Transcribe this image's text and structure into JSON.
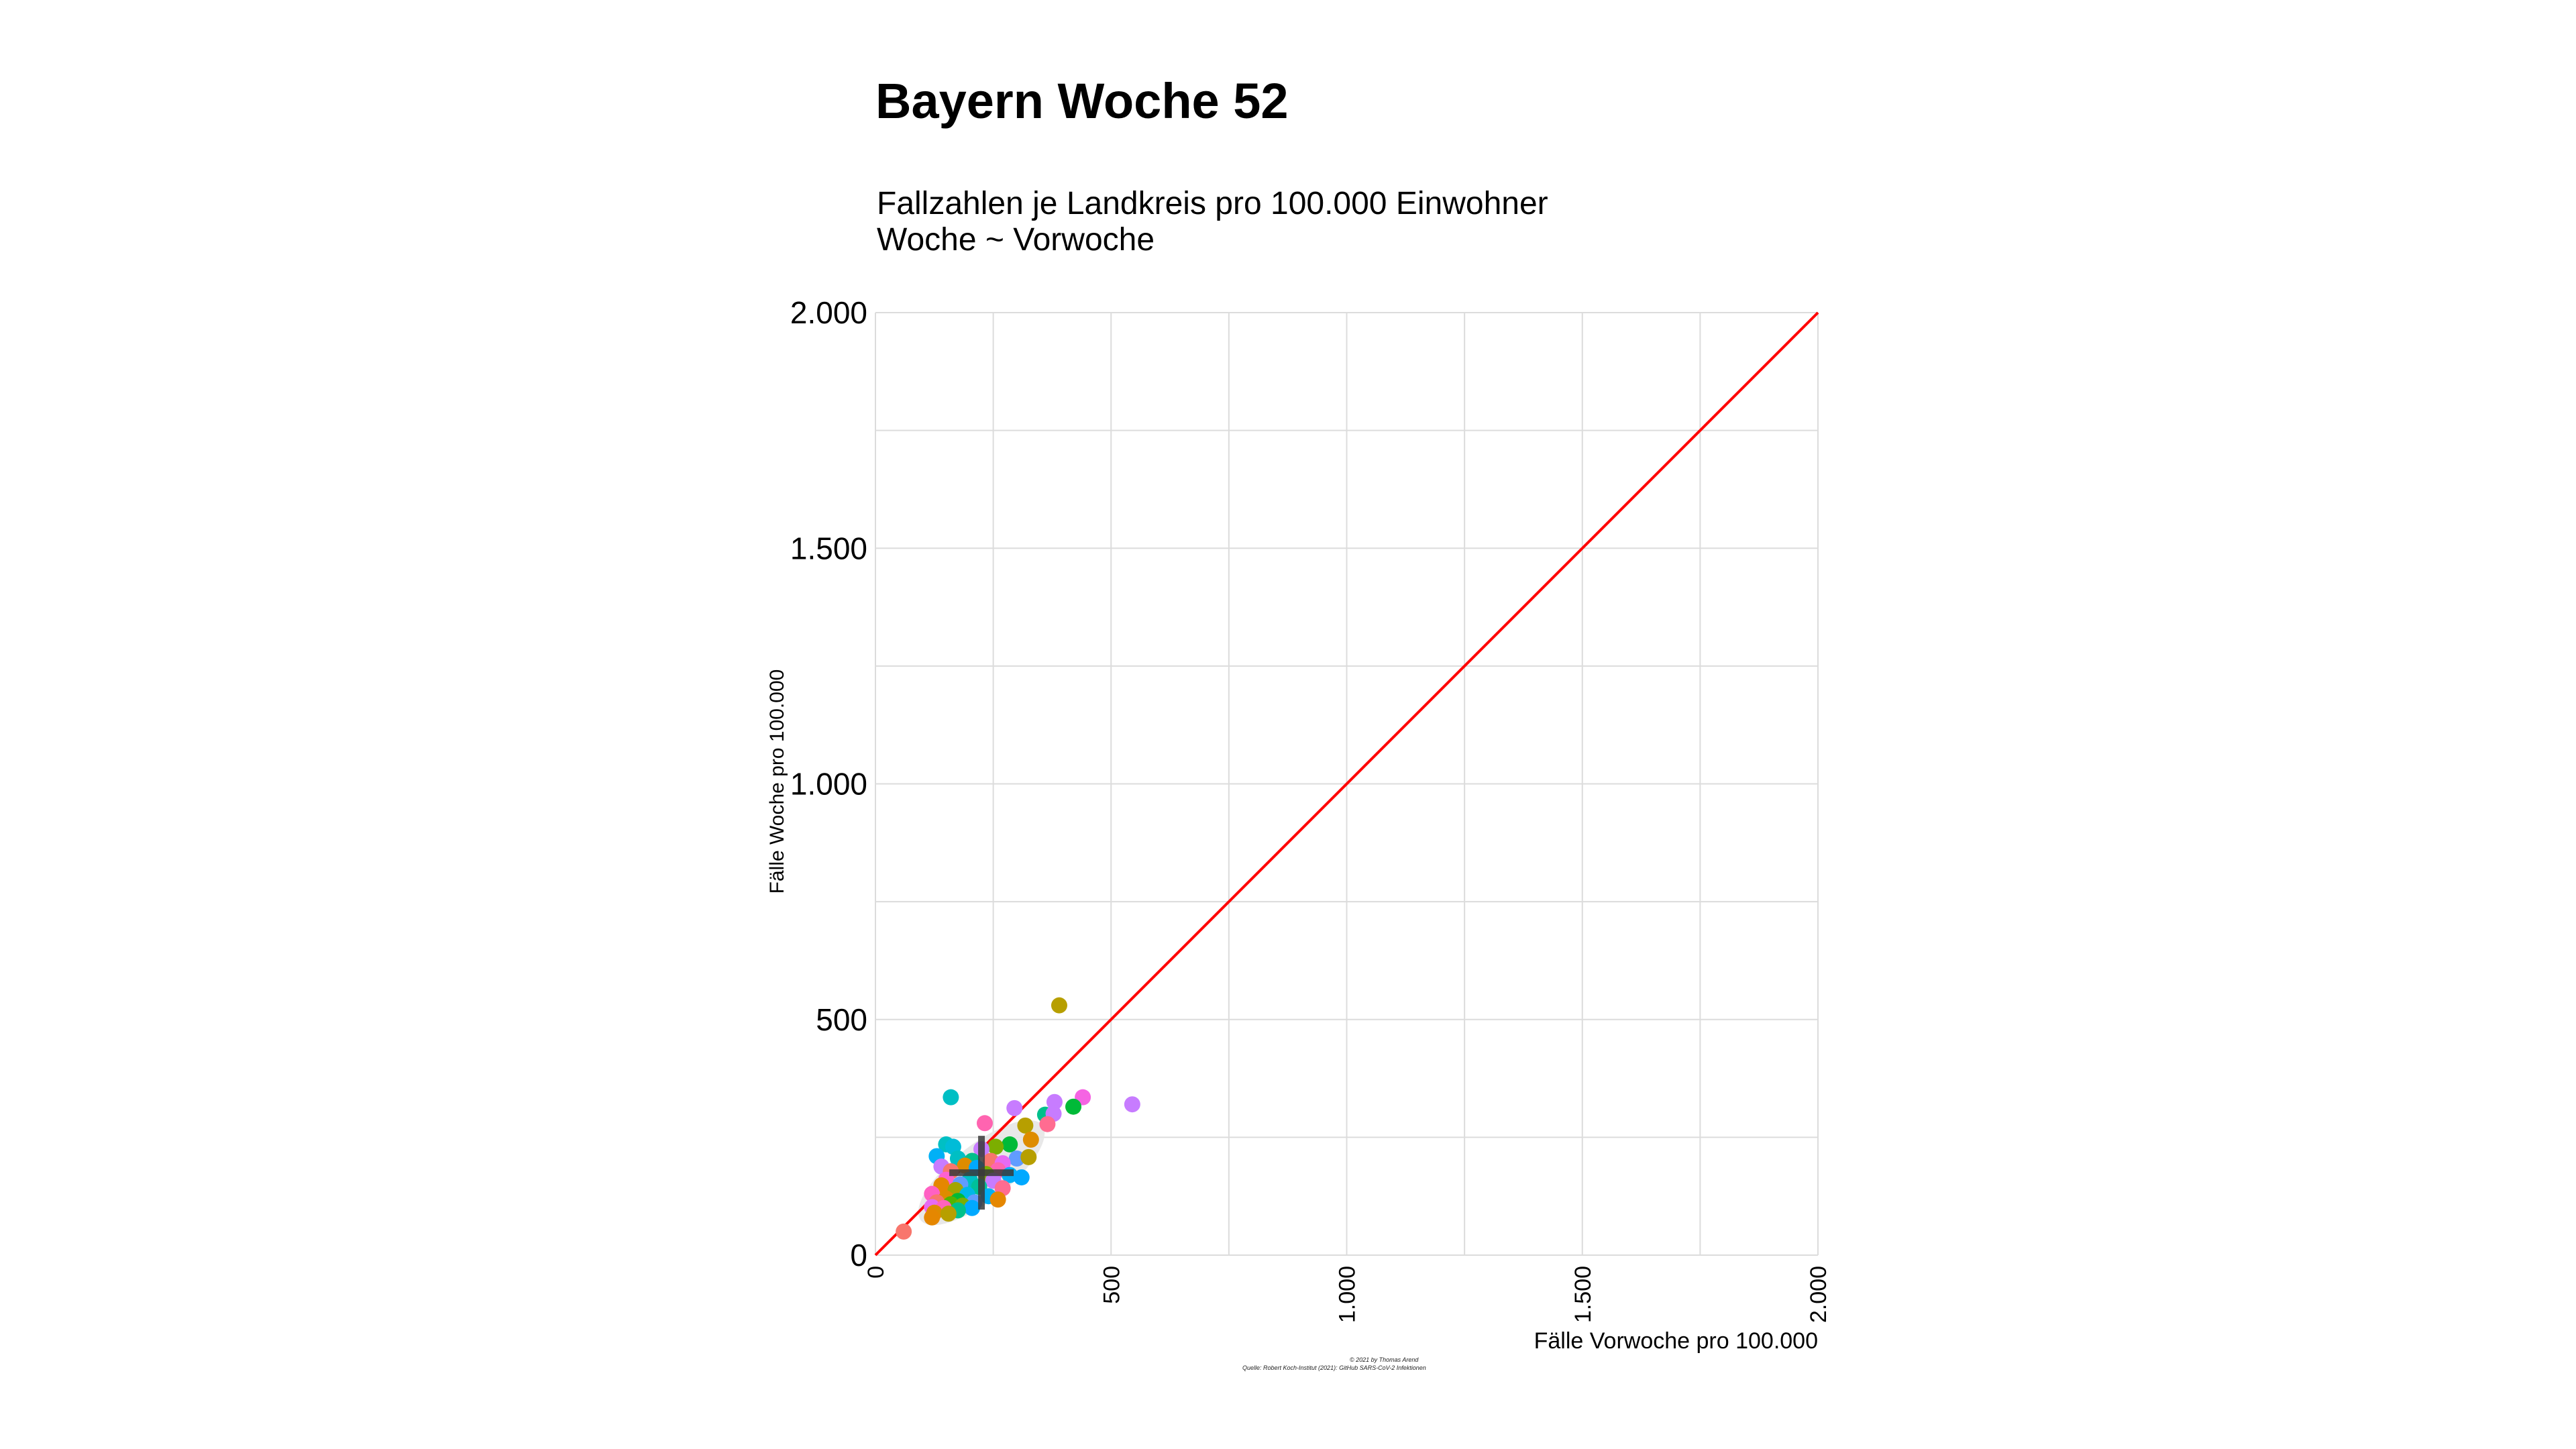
{
  "title": "Bayern Woche 52",
  "subtitle_lines": [
    "Fallzahlen je Landkreis pro 100.000 Einwohner",
    "Woche ~ Vorwoche"
  ],
  "caption_lines": [
    "© 2021 by Thomas Arend",
    "Quelle: Robert Koch-Institut (2021): GitHub SARS-CoV-2 Infektionen"
  ],
  "colors": {
    "reference_line": "#ff0000",
    "grid": "#dcdcdc",
    "mean_marker": "#3a3a3a",
    "ellipse": "#e6e6e6"
  },
  "chart_data": {
    "type": "scatter",
    "xlabel": "Fälle Vorwoche pro 100.000",
    "ylabel": "Fälle Woche pro 100.000",
    "xlim": [
      0,
      2000
    ],
    "ylim": [
      0,
      2000
    ],
    "x_ticks": [
      {
        "value": 0,
        "label": "0"
      },
      {
        "value": 500,
        "label": "500"
      },
      {
        "value": 1000,
        "label": "1.000"
      },
      {
        "value": 1500,
        "label": "1.500"
      },
      {
        "value": 2000,
        "label": "2.000"
      }
    ],
    "y_ticks": [
      {
        "value": 0,
        "label": "0"
      },
      {
        "value": 500,
        "label": "500"
      },
      {
        "value": 1000,
        "label": "1.000"
      },
      {
        "value": 1500,
        "label": "1.500"
      },
      {
        "value": 2000,
        "label": "2.000"
      }
    ],
    "grid": true,
    "legend": "none",
    "reference_line": {
      "slope": 1,
      "intercept": 0
    },
    "mean_point": {
      "x": 225,
      "y": 175
    },
    "points": [
      {
        "x": 390,
        "y": 530,
        "color": "#b79f00"
      },
      {
        "x": 160,
        "y": 335,
        "color": "#00bfc4"
      },
      {
        "x": 545,
        "y": 320,
        "color": "#c77cff"
      },
      {
        "x": 440,
        "y": 335,
        "color": "#f564e3"
      },
      {
        "x": 380,
        "y": 325,
        "color": "#c77cff"
      },
      {
        "x": 295,
        "y": 312,
        "color": "#c77cff"
      },
      {
        "x": 420,
        "y": 315,
        "color": "#00ba38"
      },
      {
        "x": 360,
        "y": 298,
        "color": "#00c08b"
      },
      {
        "x": 378,
        "y": 300,
        "color": "#c77cff"
      },
      {
        "x": 232,
        "y": 280,
        "color": "#ff64b0"
      },
      {
        "x": 318,
        "y": 275,
        "color": "#b79f00"
      },
      {
        "x": 365,
        "y": 278,
        "color": "#ff6c91"
      },
      {
        "x": 330,
        "y": 245,
        "color": "#de8c00"
      },
      {
        "x": 285,
        "y": 235,
        "color": "#00ba38"
      },
      {
        "x": 150,
        "y": 235,
        "color": "#00bfc4"
      },
      {
        "x": 165,
        "y": 230,
        "color": "#00bcd8"
      },
      {
        "x": 255,
        "y": 230,
        "color": "#7cae00"
      },
      {
        "x": 225,
        "y": 225,
        "color": "#c77cff"
      },
      {
        "x": 300,
        "y": 205,
        "color": "#619cff"
      },
      {
        "x": 325,
        "y": 208,
        "color": "#b79f00"
      },
      {
        "x": 130,
        "y": 210,
        "color": "#00b0f6"
      },
      {
        "x": 175,
        "y": 205,
        "color": "#00bfc4"
      },
      {
        "x": 205,
        "y": 200,
        "color": "#00c08b"
      },
      {
        "x": 245,
        "y": 200,
        "color": "#f8766d"
      },
      {
        "x": 270,
        "y": 195,
        "color": "#e76bf3"
      },
      {
        "x": 190,
        "y": 190,
        "color": "#de8c00"
      },
      {
        "x": 140,
        "y": 188,
        "color": "#c77cff"
      },
      {
        "x": 215,
        "y": 185,
        "color": "#00a9ff"
      },
      {
        "x": 260,
        "y": 180,
        "color": "#ff64b0"
      },
      {
        "x": 160,
        "y": 178,
        "color": "#f8766d"
      },
      {
        "x": 235,
        "y": 172,
        "color": "#7cae00"
      },
      {
        "x": 285,
        "y": 170,
        "color": "#00b0f6"
      },
      {
        "x": 310,
        "y": 165,
        "color": "#00a9ff"
      },
      {
        "x": 150,
        "y": 160,
        "color": "#fd61d1"
      },
      {
        "x": 200,
        "y": 160,
        "color": "#00bfc4"
      },
      {
        "x": 250,
        "y": 158,
        "color": "#c77cff"
      },
      {
        "x": 180,
        "y": 150,
        "color": "#619cff"
      },
      {
        "x": 140,
        "y": 148,
        "color": "#e58700"
      },
      {
        "x": 220,
        "y": 145,
        "color": "#00c19a"
      },
      {
        "x": 270,
        "y": 142,
        "color": "#ff6c91"
      },
      {
        "x": 170,
        "y": 138,
        "color": "#a3a500"
      },
      {
        "x": 120,
        "y": 130,
        "color": "#ff61c3"
      },
      {
        "x": 195,
        "y": 128,
        "color": "#00b8e7"
      },
      {
        "x": 240,
        "y": 125,
        "color": "#00b0f6"
      },
      {
        "x": 150,
        "y": 120,
        "color": "#de8c00"
      },
      {
        "x": 260,
        "y": 118,
        "color": "#e58700"
      },
      {
        "x": 175,
        "y": 115,
        "color": "#00ba38"
      },
      {
        "x": 130,
        "y": 112,
        "color": "#f8766d"
      },
      {
        "x": 210,
        "y": 112,
        "color": "#619cff"
      },
      {
        "x": 160,
        "y": 108,
        "color": "#53b400"
      },
      {
        "x": 185,
        "y": 105,
        "color": "#7cae00"
      },
      {
        "x": 120,
        "y": 102,
        "color": "#e76bf3"
      },
      {
        "x": 145,
        "y": 100,
        "color": "#ff62bc"
      },
      {
        "x": 205,
        "y": 100,
        "color": "#00a9ff"
      },
      {
        "x": 175,
        "y": 95,
        "color": "#00c08b"
      },
      {
        "x": 125,
        "y": 90,
        "color": "#de8c00"
      },
      {
        "x": 155,
        "y": 88,
        "color": "#b79f00"
      },
      {
        "x": 120,
        "y": 80,
        "color": "#e58700"
      },
      {
        "x": 60,
        "y": 50,
        "color": "#f8766d"
      }
    ]
  }
}
